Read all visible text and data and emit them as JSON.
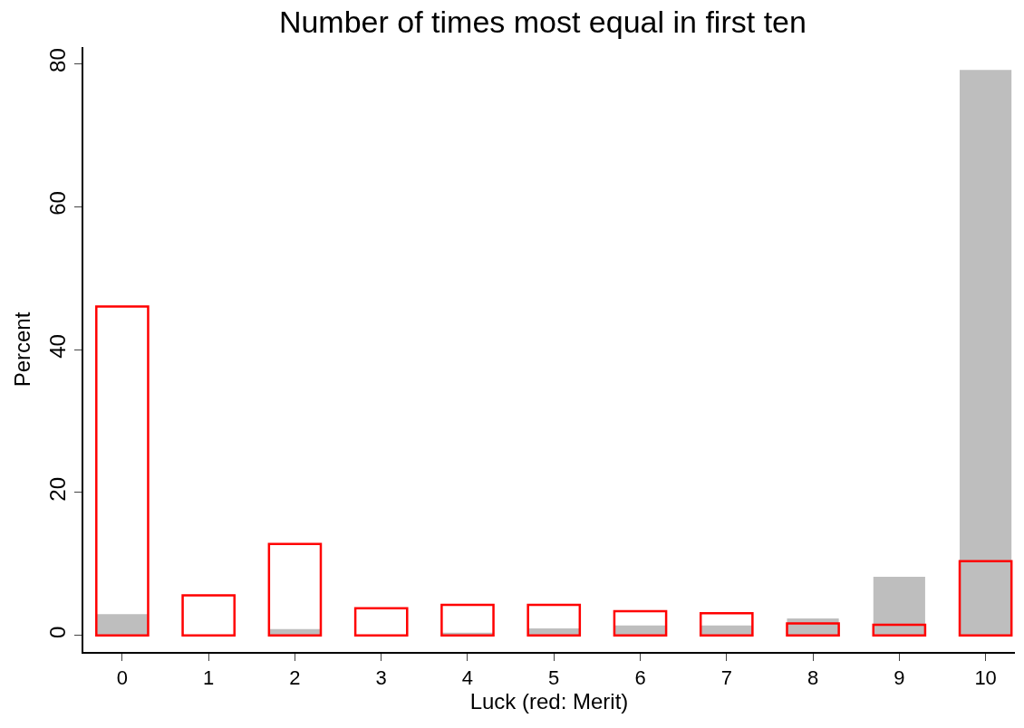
{
  "chart_data": {
    "type": "bar",
    "title": "Number of times most equal in first ten",
    "xlabel": "Luck (red: Merit)",
    "ylabel": "Percent",
    "categories": [
      "0",
      "1",
      "2",
      "3",
      "4",
      "5",
      "6",
      "7",
      "8",
      "9",
      "10"
    ],
    "series": [
      {
        "color": "#bebebe",
        "values": [
          3.0,
          0,
          0.9,
          null,
          0.4,
          1.0,
          1.4,
          1.4,
          2.4,
          8.2,
          79.1
        ]
      },
      {
        "color": "#ff0000",
        "values": [
          46.0,
          5.6,
          12.8,
          3.8,
          4.3,
          4.3,
          3.4,
          3.1,
          1.7,
          1.5,
          10.4
        ]
      }
    ],
    "ylim": [
      -2.3,
      82.3
    ],
    "yticks": [
      0,
      20,
      40,
      60,
      80
    ],
    "grid": false
  }
}
